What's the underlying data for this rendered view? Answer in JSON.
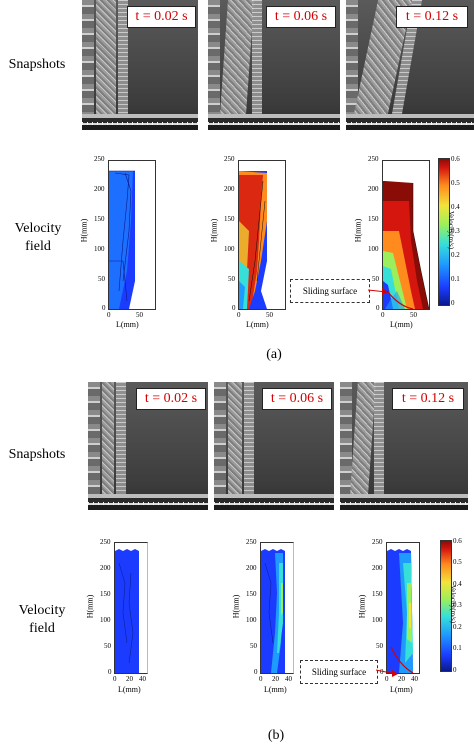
{
  "panel_a": {
    "snapshots_label": "Snapshots",
    "velocity_label_1": "Velocity",
    "velocity_label_2": "field",
    "times": [
      "t = 0.02 s",
      "t = 0.06 s",
      "t = 0.12 s"
    ],
    "plot": {
      "y_label": "H(mm)",
      "x_label": "L(mm)",
      "y_ticks": [
        "250",
        "200",
        "150",
        "100",
        "50",
        "0"
      ],
      "x_ticks": [
        "0",
        "50"
      ]
    },
    "colorbar": {
      "label": "Velocity(m/s)",
      "ticks": [
        "0.6",
        "0.5",
        "0.4",
        "0.3",
        "0.2",
        "0.1",
        "0"
      ]
    },
    "sliding_surface": "Sliding surface",
    "caption": "(a)"
  },
  "panel_b": {
    "snapshots_label": "Snapshots",
    "velocity_label_1": "Velocity",
    "velocity_label_2": "field",
    "times": [
      "t = 0.02 s",
      "t = 0.06 s",
      "t = 0.12 s"
    ],
    "plot": {
      "y_label": "H(mm)",
      "x_label": "L(mm)",
      "y_ticks": [
        "250",
        "200",
        "150",
        "100",
        "50",
        "0"
      ],
      "x_ticks": [
        "0",
        "20",
        "40"
      ]
    },
    "colorbar": {
      "label": "Velocity(m/s)",
      "ticks": [
        "0.6",
        "0.5",
        "0.4",
        "0.3",
        "0.2",
        "0.1",
        "0"
      ]
    },
    "sliding_surface": "Sliding surface",
    "caption": "(b)"
  },
  "colors": {
    "time_label": "#d40000",
    "velocity_low": "#0a1a8c",
    "velocity_high": "#d4160f"
  }
}
